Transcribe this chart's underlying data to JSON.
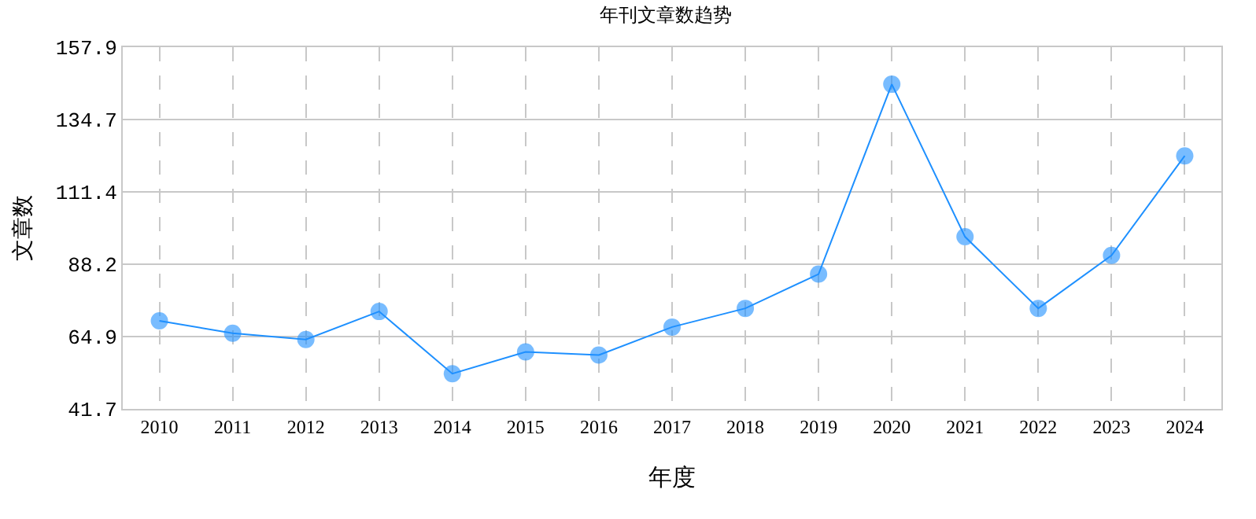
{
  "chart_data": {
    "type": "line",
    "title": "年刊文章数趋势",
    "xlabel": "年度",
    "ylabel": "文章数",
    "categories": [
      "2010",
      "2011",
      "2012",
      "2013",
      "2014",
      "2015",
      "2016",
      "2017",
      "2018",
      "2019",
      "2020",
      "2021",
      "2022",
      "2023",
      "2024"
    ],
    "series": [
      {
        "color": "#1e90ff",
        "values": [
          70,
          66,
          64,
          73,
          53,
          60,
          59,
          68,
          74,
          85,
          146,
          97,
          74,
          91,
          123
        ]
      }
    ],
    "ylim": [
      41.7,
      157.9
    ],
    "yticks": [
      41.7,
      64.9,
      88.2,
      111.4,
      134.7,
      157.9
    ],
    "grid": true,
    "marker": "circle",
    "line_style": "solid"
  }
}
